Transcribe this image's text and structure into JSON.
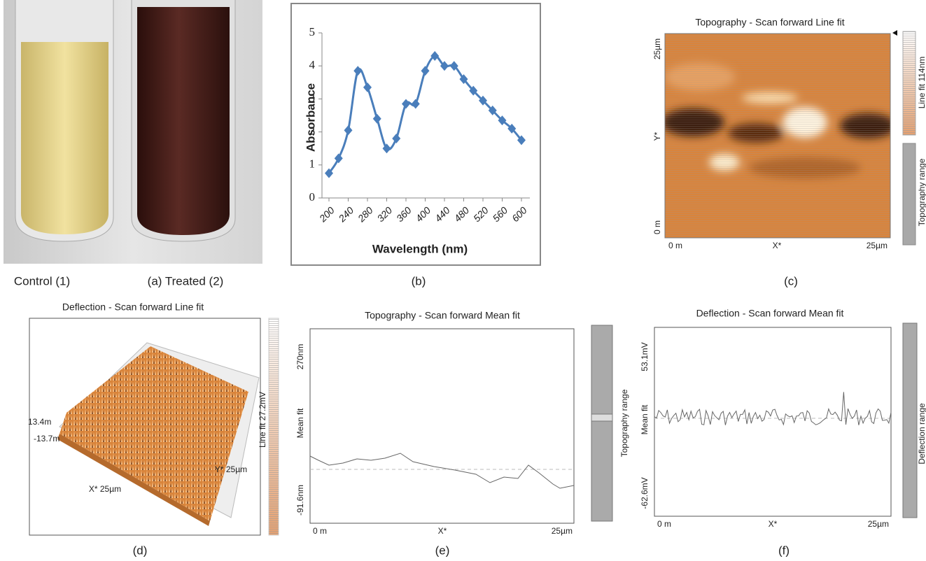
{
  "chart_data": [
    {
      "type": "line",
      "xlabel": "Wavelength (nm)",
      "ylabel": "Absorbance",
      "x": [
        200,
        220,
        240,
        260,
        280,
        300,
        320,
        340,
        360,
        380,
        400,
        420,
        440,
        460,
        480,
        500,
        520,
        540,
        560,
        580,
        600
      ],
      "values": [
        0.75,
        1.2,
        2.05,
        3.85,
        3.35,
        2.4,
        1.5,
        1.8,
        2.85,
        2.85,
        3.85,
        4.3,
        4.0,
        4.0,
        3.6,
        3.25,
        2.95,
        2.65,
        2.35,
        2.1,
        1.75
      ],
      "color": "#4a7ebb",
      "xlim": [
        200,
        600
      ],
      "xticks": [
        200,
        240,
        280,
        320,
        360,
        400,
        440,
        480,
        520,
        560,
        600
      ],
      "ylim": [
        0,
        5
      ],
      "yticks": [
        0,
        1,
        2,
        3,
        4,
        5
      ]
    }
  ],
  "captions": [
    "Control (1)",
    "(a) Treated (2)",
    "(b)",
    "(c)",
    "(d)",
    "(e)",
    "(f)"
  ],
  "panel_c": {
    "title": "Topography - Scan forward   Line fit",
    "y_top": "25µm",
    "y_label": "Y*",
    "y_bottom": "0 m",
    "x_left": "0 m",
    "x_mid": "X*",
    "x_right": "25µm",
    "bar_top": "Line fit 114nm",
    "bar_bottom": "Topography range"
  },
  "panel_d": {
    "title": "Deflection - Scan forward   Line fit",
    "z_top": "13.4m",
    "z_bottom": "-13.7m",
    "x_label": "X* 25µm",
    "y_label": "Y* 25µm",
    "bar": "Line fit 27.2mV"
  },
  "panel_e": {
    "title": "Topography - Scan forward   Mean fit",
    "y_top": "270nm",
    "y_label": "Mean fit",
    "y_bottom": "-91.6nm",
    "x_left": "0 m",
    "x_mid": "X*",
    "x_right": "25µm",
    "bar": "Topography range"
  },
  "panel_f": {
    "title": "Deflection - Scan forward   Mean fit",
    "y_top": "53.1mV",
    "y_label": "Mean fit",
    "y_bottom": "-62.6mV",
    "x_left": "0 m",
    "x_mid": "X*",
    "x_right": "25µm",
    "bar": "Deflection range"
  }
}
